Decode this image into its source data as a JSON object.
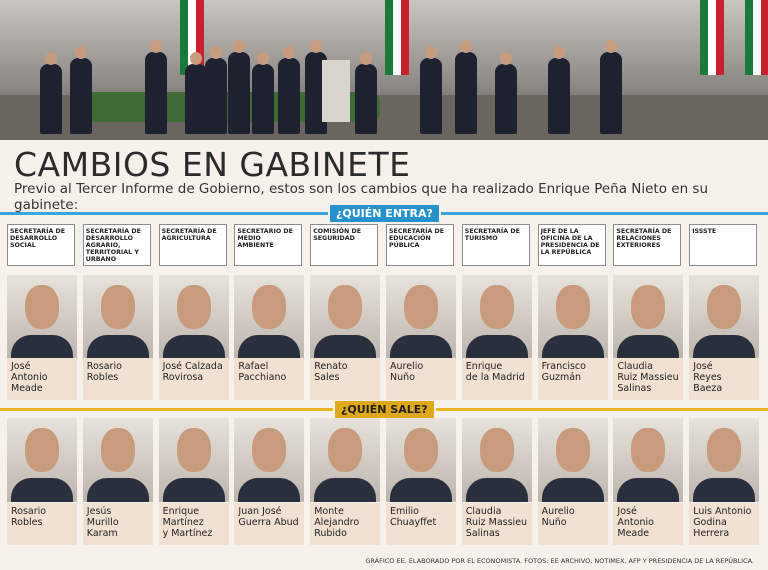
{
  "header": {
    "title": "CAMBIOS EN GABINETE",
    "subtitle": "Previo al Tercer Informe de Gobierno, estos son los cambios que ha realizado Enrique Peña Nieto en su gabinete:"
  },
  "departments": [
    "SECRETARÍA DE DESARROLLO SOCIAL",
    "SECRETARÍA DE DESARROLLO AGRARIO, TERRITORIAL Y URBANO",
    "SECRETARÍA DE AGRICULTURA",
    "SECRETARIO DE MEDIO AMBIENTE",
    "COMISIÓN DE SEGURIDAD",
    "SECRETARÍA DE EDUCACIÓN PÚBLICA",
    "SECRETARÍA DE TURISMO",
    "JEFE DE LA OFICINA DE LA PRESIDENCIA DE LA REPÚBLICA",
    "SECRETARÍA DE RELACIONES EXTERIORES",
    "ISSSTE"
  ],
  "entering": {
    "label": "¿QUIÉN ENTRA?",
    "names": [
      "José\nAntonio\nMeade",
      "Rosario\nRobles",
      "José Calzada\nRovirosa",
      "Rafael\nPacchiano",
      "Renato\nSales",
      "Aurelio\nNuño",
      "Enrique\nde la Madrid",
      "Francisco\nGuzmán",
      "Claudia\nRuiz Massieu\nSalinas",
      "José\nReyes\nBaeza"
    ]
  },
  "leaving": {
    "label": "¿QUIÉN SALE?",
    "names": [
      "Rosario\nRobles",
      "Jesús\nMurillo\nKaram",
      "Enrique\nMartínez\ny Martínez",
      "Juan José\nGuerra Abud",
      "Monte\nAlejandro\nRubido",
      "Emilio\nChuayffet",
      "Claudia\nRuiz Massieu\nSalinas",
      "Aurelio\nNuño",
      "José\nAntonio\nMeade",
      "Luis Antonio\nGodina\nHerrera"
    ]
  },
  "footer": "GRÁFICO EE. ELABORADO POR EL ECONOMISTA. FOTOS: EE ARCHIVO, NOTIMEX, AFP Y PRESIDENCIA DE LA REPÚBLICA."
}
